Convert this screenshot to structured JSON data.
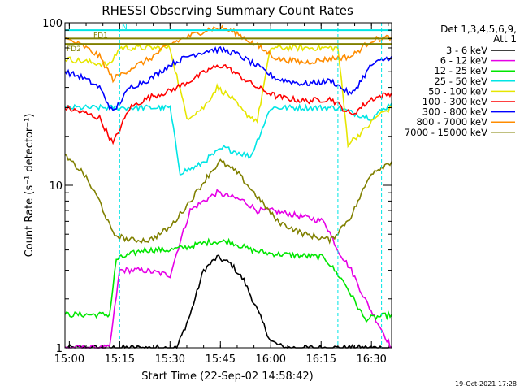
{
  "chart_data": {
    "type": "line",
    "title": "RHESSI Observing Summary Count Rates",
    "xlabel": "Start Time (22-Sep-02 14:58:42)",
    "ylabel": "Count Rate (s⁻¹ detector⁻¹)",
    "y_scale": "log",
    "ylim": [
      1,
      100
    ],
    "xlim": [
      "14:58:42",
      "16:36:00"
    ],
    "x_ticks": [
      "15:00",
      "15:15",
      "15:30",
      "15:45",
      "16:00",
      "16:15",
      "16:30"
    ],
    "y_ticks": [
      "1",
      "10",
      "100"
    ],
    "legend": {
      "placement": "right",
      "header": [
        "Det 1,3,4,5,6,9,",
        "Att 1"
      ]
    },
    "flags": [
      {
        "label": "FD1",
        "color": "#808000",
        "level": 80
      },
      {
        "label": "FD2",
        "color": "#808000",
        "level": 74
      },
      {
        "label": "N",
        "color": "#00e5e5",
        "level": 90
      }
    ],
    "vertical_markers": [
      "14:58:42",
      "15:15:00",
      "16:20:00",
      "16:33:00"
    ],
    "series": [
      {
        "name": "3 - 6 keV",
        "color": "#000000",
        "points": [
          [
            "14:58:42",
            1.0
          ],
          [
            "15:32",
            1.0
          ],
          [
            "15:36",
            1.6
          ],
          [
            "15:40",
            3.0
          ],
          [
            "15:44",
            3.6
          ],
          [
            "15:48",
            3.3
          ],
          [
            "15:52",
            2.6
          ],
          [
            "15:56",
            1.7
          ],
          [
            "16:00",
            1.1
          ],
          [
            "16:04",
            1.0
          ],
          [
            "16:36",
            1.0
          ]
        ]
      },
      {
        "name": "6 - 12 keV",
        "color": "#e600e6",
        "points": [
          [
            "14:58:42",
            1.0
          ],
          [
            "15:12",
            1.0
          ],
          [
            "15:15",
            3.0
          ],
          [
            "15:22",
            3.0
          ],
          [
            "15:30",
            2.8
          ],
          [
            "15:33",
            4.5
          ],
          [
            "15:36",
            7.0
          ],
          [
            "15:40",
            8.0
          ],
          [
            "15:44",
            9.0
          ],
          [
            "15:48",
            8.5
          ],
          [
            "15:52",
            8.0
          ],
          [
            "15:56",
            7.0
          ],
          [
            "16:00",
            7.0
          ],
          [
            "16:08",
            6.5
          ],
          [
            "16:16",
            6.0
          ],
          [
            "16:20",
            4.0
          ],
          [
            "16:24",
            3.0
          ],
          [
            "16:28",
            2.0
          ],
          [
            "16:36",
            1.0
          ]
        ]
      },
      {
        "name": "12 - 25 keV",
        "color": "#00e600",
        "points": [
          [
            "14:58:42",
            1.6
          ],
          [
            "15:12",
            1.6
          ],
          [
            "15:14",
            3.5
          ],
          [
            "15:22",
            4.0
          ],
          [
            "15:30",
            4.0
          ],
          [
            "15:36",
            4.2
          ],
          [
            "15:42",
            4.5
          ],
          [
            "15:48",
            4.5
          ],
          [
            "15:54",
            4.0
          ],
          [
            "16:00",
            3.8
          ],
          [
            "16:08",
            3.7
          ],
          [
            "16:16",
            3.6
          ],
          [
            "16:22",
            2.5
          ],
          [
            "16:28",
            1.5
          ],
          [
            "16:36",
            1.6
          ]
        ]
      },
      {
        "name": "25 - 50 keV",
        "color": "#00e5e5",
        "points": [
          [
            "14:58:42",
            30
          ],
          [
            "15:15",
            30
          ],
          [
            "15:22",
            30
          ],
          [
            "15:30",
            30
          ],
          [
            "15:33",
            12
          ],
          [
            "15:38",
            13
          ],
          [
            "15:42",
            15
          ],
          [
            "15:46",
            17
          ],
          [
            "15:50",
            16
          ],
          [
            "15:54",
            15
          ],
          [
            "16:00",
            30
          ],
          [
            "16:10",
            30
          ],
          [
            "16:20",
            30
          ],
          [
            "16:24",
            28
          ],
          [
            "16:30",
            26
          ],
          [
            "16:36",
            32
          ]
        ]
      },
      {
        "name": "50 - 100 keV",
        "color": "#e6e600",
        "points": [
          [
            "14:58:42",
            60
          ],
          [
            "15:12",
            55
          ],
          [
            "15:15",
            70
          ],
          [
            "15:22",
            70
          ],
          [
            "15:30",
            70
          ],
          [
            "15:35",
            26
          ],
          [
            "15:40",
            30
          ],
          [
            "15:44",
            40
          ],
          [
            "15:48",
            35
          ],
          [
            "15:52",
            28
          ],
          [
            "15:56",
            25
          ],
          [
            "16:00",
            70
          ],
          [
            "16:10",
            70
          ],
          [
            "16:20",
            70
          ],
          [
            "16:23",
            18
          ],
          [
            "16:28",
            22
          ],
          [
            "16:32",
            27
          ],
          [
            "16:36",
            30
          ]
        ]
      },
      {
        "name": "100 - 300 keV",
        "color": "#ff0000",
        "points": [
          [
            "14:58:42",
            30
          ],
          [
            "15:04",
            28
          ],
          [
            "15:09",
            26
          ],
          [
            "15:13",
            18
          ],
          [
            "15:18",
            30
          ],
          [
            "15:24",
            35
          ],
          [
            "15:30",
            38
          ],
          [
            "15:36",
            44
          ],
          [
            "15:42",
            52
          ],
          [
            "15:46",
            55
          ],
          [
            "15:50",
            48
          ],
          [
            "15:56",
            40
          ],
          [
            "16:02",
            35
          ],
          [
            "16:10",
            33
          ],
          [
            "16:18",
            34
          ],
          [
            "16:24",
            27
          ],
          [
            "16:30",
            34
          ],
          [
            "16:36",
            37
          ]
        ]
      },
      {
        "name": "300 - 800 keV",
        "color": "#0000ff",
        "points": [
          [
            "14:58:42",
            50
          ],
          [
            "15:04",
            46
          ],
          [
            "15:09",
            40
          ],
          [
            "15:13",
            28
          ],
          [
            "15:18",
            40
          ],
          [
            "15:24",
            45
          ],
          [
            "15:30",
            55
          ],
          [
            "15:36",
            63
          ],
          [
            "15:42",
            68
          ],
          [
            "15:46",
            68
          ],
          [
            "15:50",
            64
          ],
          [
            "15:56",
            54
          ],
          [
            "16:02",
            45
          ],
          [
            "16:10",
            42
          ],
          [
            "16:18",
            44
          ],
          [
            "16:24",
            36
          ],
          [
            "16:30",
            55
          ],
          [
            "16:36",
            62
          ]
        ]
      },
      {
        "name": "800 - 7000 keV",
        "color": "#ff8c00",
        "points": [
          [
            "14:58:42",
            80
          ],
          [
            "15:04",
            72
          ],
          [
            "15:09",
            62
          ],
          [
            "15:13",
            45
          ],
          [
            "15:18",
            52
          ],
          [
            "15:24",
            60
          ],
          [
            "15:30",
            74
          ],
          [
            "15:36",
            83
          ],
          [
            "15:42",
            92
          ],
          [
            "15:46",
            92
          ],
          [
            "15:50",
            86
          ],
          [
            "15:56",
            72
          ],
          [
            "16:02",
            60
          ],
          [
            "16:10",
            57
          ],
          [
            "16:18",
            60
          ],
          [
            "16:24",
            62
          ],
          [
            "16:30",
            78
          ],
          [
            "16:36",
            82
          ]
        ]
      },
      {
        "name": "7000 - 15000 keV",
        "color": "#808000",
        "points": [
          [
            "14:58:42",
            15
          ],
          [
            "15:04",
            12
          ],
          [
            "15:09",
            8
          ],
          [
            "15:13",
            5
          ],
          [
            "15:18",
            4.6
          ],
          [
            "15:24",
            4.6
          ],
          [
            "15:30",
            5.5
          ],
          [
            "15:36",
            8
          ],
          [
            "15:42",
            12
          ],
          [
            "15:45",
            14
          ],
          [
            "15:50",
            12
          ],
          [
            "15:56",
            8.5
          ],
          [
            "16:02",
            6
          ],
          [
            "16:10",
            5
          ],
          [
            "16:18",
            4.6
          ],
          [
            "16:24",
            6.5
          ],
          [
            "16:30",
            12
          ],
          [
            "16:36",
            14
          ]
        ]
      }
    ],
    "timestamp": "19-Oct-2021 17:28"
  }
}
